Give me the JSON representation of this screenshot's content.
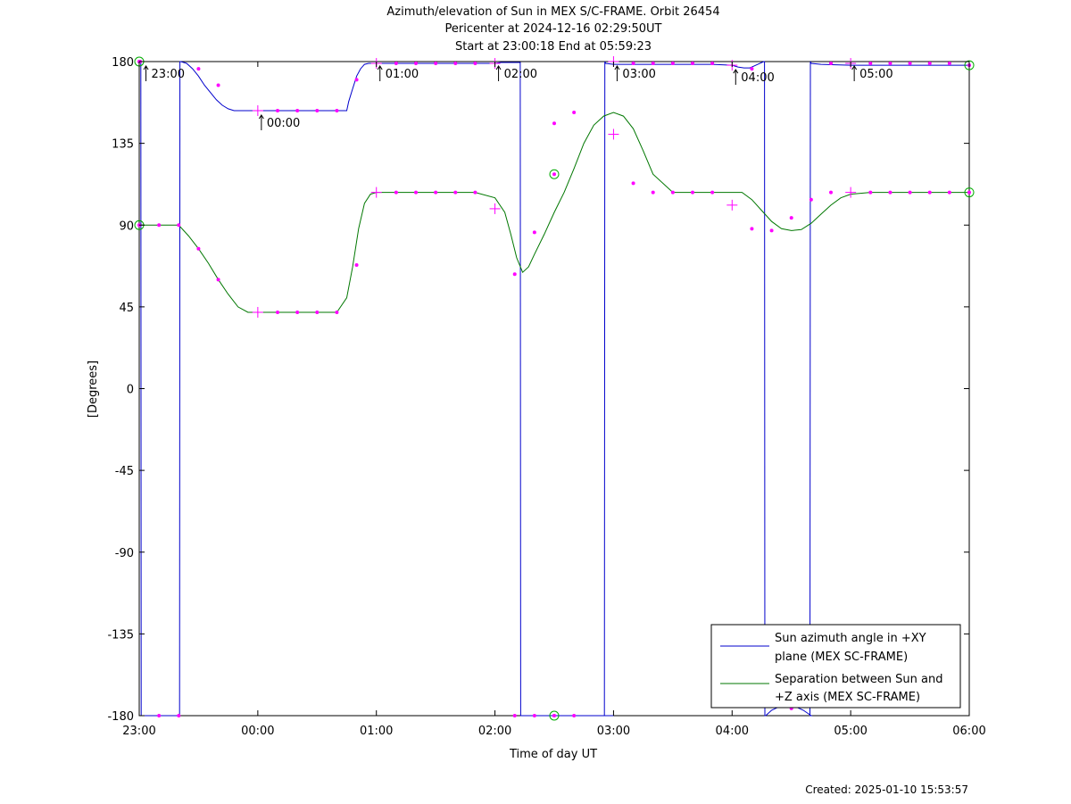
{
  "chart_data": {
    "type": "line",
    "title": "Azimuth/elevation of Sun in MEX S/C-FRAME.  Orbit 26454",
    "subtitle1": "Pericenter at 2024-12-16 02:29:50UT",
    "subtitle2": "Start at 23:00:18 End at 05:59:23",
    "xlabel": "Time of day UT",
    "ylabel": "[Degrees]",
    "footer": "Created: 2025-01-10 15:53:57",
    "xlim": [
      0,
      420
    ],
    "ylim": [
      -180,
      180
    ],
    "x_ticks": [
      {
        "v": 0,
        "label": "23:00"
      },
      {
        "v": 60,
        "label": "00:00"
      },
      {
        "v": 120,
        "label": "01:00"
      },
      {
        "v": 180,
        "label": "02:00"
      },
      {
        "v": 240,
        "label": "03:00"
      },
      {
        "v": 300,
        "label": "04:00"
      },
      {
        "v": 360,
        "label": "05:00"
      },
      {
        "v": 420,
        "label": "06:00"
      }
    ],
    "y_ticks": [
      {
        "v": 180,
        "label": "180"
      },
      {
        "v": 135,
        "label": "135"
      },
      {
        "v": 90,
        "label": "90"
      },
      {
        "v": 45,
        "label": "45"
      },
      {
        "v": 0,
        "label": "0"
      },
      {
        "v": -45,
        "label": "-45"
      },
      {
        "v": -90,
        "label": "-90"
      },
      {
        "v": -135,
        "label": "-135"
      },
      {
        "v": -180,
        "label": "-180"
      }
    ],
    "legend_position": "bottom-right",
    "series": [
      {
        "name_lines": [
          "Sun azimuth angle in +XY",
          "plane (MEX SC-FRAME)"
        ],
        "color": "#0000cc",
        "x": [
          0,
          0.8,
          1,
          1.4,
          20.4,
          20.6,
          21,
          24,
          27,
          30,
          33,
          36,
          39,
          42,
          45,
          48,
          51,
          54,
          57,
          60,
          70,
          80,
          90,
          100,
          105,
          106,
          108,
          110,
          112,
          114,
          116,
          118,
          120,
          130,
          140,
          150,
          160,
          170,
          180,
          183,
          192.8,
          193,
          193.4,
          240,
          235.4,
          235.6,
          236,
          240,
          250,
          260,
          270,
          280,
          290,
          300,
          303,
          306,
          309,
          312,
          316,
          316.4,
          316.6,
          317,
          320,
          324,
          328,
          332,
          336,
          340,
          339.4,
          339.6,
          340,
          345,
          360,
          380,
          400,
          420
        ],
        "y": [
          180,
          180,
          -180,
          -180,
          -180,
          180,
          180,
          179,
          176,
          172,
          167,
          163,
          159,
          156,
          154,
          153,
          153,
          153,
          153,
          153,
          153,
          153,
          153,
          153,
          153,
          158,
          165,
          172,
          176,
          178.5,
          179,
          179,
          179,
          179,
          179,
          179,
          179,
          179,
          179,
          179.5,
          179.5,
          -180,
          -180,
          -180,
          -180,
          180,
          179,
          178.5,
          178.5,
          178.5,
          178.5,
          178.5,
          178.5,
          178,
          177,
          176.5,
          176.5,
          178,
          180,
          180,
          -180,
          -180,
          -177,
          -175,
          -174,
          -175,
          -177,
          -180,
          -180,
          180,
          179,
          178.5,
          178,
          178,
          178,
          178
        ]
      },
      {
        "name_lines": [
          "Separation between Sun and",
          "+Z axis (MEX SC-FRAME)"
        ],
        "color": "#007700",
        "x": [
          0,
          10,
          20,
          25,
          30,
          35,
          40,
          45,
          50,
          55,
          60,
          70,
          80,
          90,
          100,
          105,
          108,
          111,
          114,
          117,
          120,
          130,
          140,
          150,
          160,
          170,
          180,
          185,
          188,
          191,
          194,
          197,
          200,
          205,
          210,
          215,
          220,
          225,
          230,
          235,
          240,
          245,
          250,
          255,
          260,
          270,
          280,
          290,
          300,
          305,
          310,
          315,
          320,
          325,
          330,
          335,
          340,
          345,
          350,
          355,
          360,
          370,
          380,
          390,
          400,
          410,
          420
        ],
        "y": [
          90,
          90,
          90,
          84,
          77,
          69,
          60,
          52,
          45,
          42,
          42,
          42,
          42,
          42,
          42,
          50,
          67,
          88,
          102,
          107,
          108,
          108,
          108,
          108,
          108,
          108,
          105,
          97,
          85,
          72,
          64,
          67,
          74,
          85,
          97,
          108,
          121,
          135,
          145,
          150,
          152,
          150,
          143,
          131,
          118,
          108,
          108,
          108,
          108,
          108,
          104,
          98,
          92,
          88,
          87,
          87.5,
          91,
          96,
          101,
          105,
          107,
          108,
          108,
          108,
          108,
          108,
          108
        ]
      }
    ],
    "markers": {
      "dots": [
        [
          0.5,
          180
        ],
        [
          10,
          90
        ],
        [
          10,
          -180
        ],
        [
          20,
          90
        ],
        [
          20,
          -180
        ],
        [
          30,
          176
        ],
        [
          30,
          77
        ],
        [
          40,
          167
        ],
        [
          40,
          60
        ],
        [
          70,
          153
        ],
        [
          70,
          42
        ],
        [
          80,
          153
        ],
        [
          80,
          42
        ],
        [
          90,
          153
        ],
        [
          90,
          42
        ],
        [
          100,
          153
        ],
        [
          100,
          42
        ],
        [
          110,
          170
        ],
        [
          110,
          68
        ],
        [
          130,
          179
        ],
        [
          130,
          108
        ],
        [
          140,
          179
        ],
        [
          140,
          108
        ],
        [
          150,
          179
        ],
        [
          150,
          108
        ],
        [
          160,
          179
        ],
        [
          160,
          108
        ],
        [
          170,
          179
        ],
        [
          170,
          108
        ],
        [
          190,
          63
        ],
        [
          190,
          -180
        ],
        [
          200,
          86
        ],
        [
          200,
          -180
        ],
        [
          210,
          146
        ],
        [
          210,
          -180
        ],
        [
          220,
          152
        ],
        [
          220,
          -180
        ],
        [
          250,
          179
        ],
        [
          250,
          113
        ],
        [
          260,
          179
        ],
        [
          260,
          108
        ],
        [
          270,
          179
        ],
        [
          270,
          108
        ],
        [
          280,
          179
        ],
        [
          280,
          108
        ],
        [
          290,
          179
        ],
        [
          290,
          108
        ],
        [
          310,
          176
        ],
        [
          310,
          88
        ],
        [
          320,
          -174
        ],
        [
          320,
          87
        ],
        [
          330,
          -176
        ],
        [
          330,
          94
        ],
        [
          340,
          104
        ],
        [
          350,
          179
        ],
        [
          350,
          108
        ],
        [
          370,
          179
        ],
        [
          370,
          108
        ],
        [
          380,
          179
        ],
        [
          380,
          108
        ],
        [
          390,
          179
        ],
        [
          390,
          108
        ],
        [
          400,
          179
        ],
        [
          400,
          108
        ],
        [
          410,
          179
        ],
        [
          410,
          108
        ]
      ],
      "crosses": [
        [
          60,
          153
        ],
        [
          60,
          42
        ],
        [
          120,
          179
        ],
        [
          120,
          108
        ],
        [
          180,
          179
        ],
        [
          180,
          99
        ],
        [
          240,
          180
        ],
        [
          240,
          140
        ],
        [
          300,
          178
        ],
        [
          300,
          101
        ],
        [
          360,
          179
        ],
        [
          360,
          108
        ]
      ],
      "circles": [
        [
          0,
          180
        ],
        [
          0,
          90
        ],
        [
          420,
          178
        ],
        [
          420,
          108
        ],
        [
          210,
          118
        ],
        [
          210,
          -180
        ]
      ]
    },
    "annotations": [
      {
        "x": 1.6,
        "y": 180,
        "label": "23:00"
      },
      {
        "x": 60,
        "y": 153,
        "label": "00:00"
      },
      {
        "x": 120,
        "y": 180,
        "label": "01:00"
      },
      {
        "x": 180,
        "y": 180,
        "label": "02:00"
      },
      {
        "x": 240,
        "y": 180,
        "label": "03:00"
      },
      {
        "x": 300,
        "y": 178,
        "label": "04:00"
      },
      {
        "x": 360,
        "y": 180,
        "label": "05:00"
      }
    ],
    "marker_color": "#ff00ff",
    "grid": false
  }
}
